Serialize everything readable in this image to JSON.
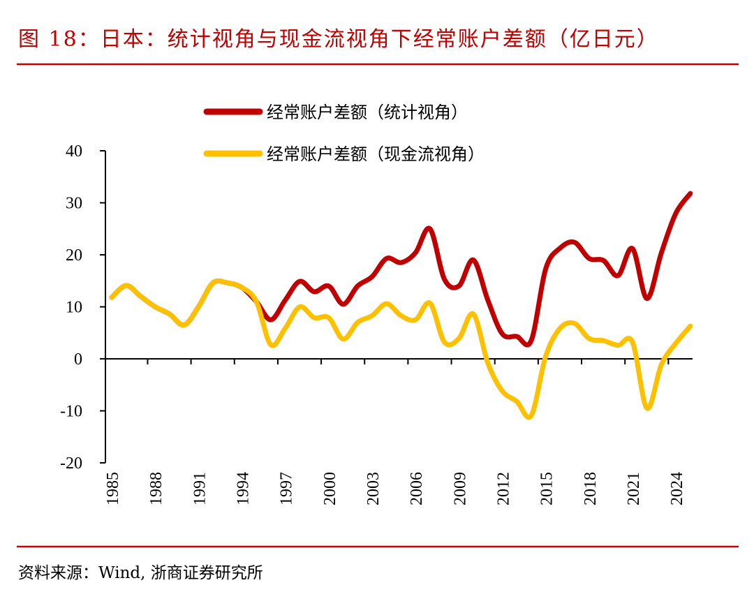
{
  "title": "图 18：日本：统计视角与现金流视角下经常账户差额（亿日元）",
  "source": "资料来源：Wind, 浙商证券研究所",
  "colors": {
    "accent": "#c00000",
    "series1": "#c00000",
    "series2": "#ffc000"
  },
  "chart_data": {
    "type": "line",
    "title": "日本：统计视角与现金流视角下经常账户差额（亿日元）",
    "xlabel": "",
    "ylabel": "",
    "ylim": [
      -20,
      40
    ],
    "yticks": [
      "40",
      "30",
      "20",
      "10",
      "0",
      "-10",
      "-20"
    ],
    "ytick_values": [
      40,
      30,
      20,
      10,
      0,
      -10,
      -20
    ],
    "xticks": [
      "1985",
      "1988",
      "1991",
      "1994",
      "1997",
      "2000",
      "2003",
      "2006",
      "2009",
      "2012",
      "2015",
      "2018",
      "2021",
      "2024"
    ],
    "xtick_values": [
      1985,
      1988,
      1991,
      1994,
      1997,
      2000,
      2003,
      2006,
      2009,
      2012,
      2015,
      2018,
      2021,
      2024
    ],
    "legend_position": "top-center",
    "x": [
      1985,
      1986,
      1987,
      1988,
      1989,
      1990,
      1991,
      1992,
      1993,
      1994,
      1995,
      1996,
      1997,
      1998,
      1999,
      2000,
      2001,
      2002,
      2003,
      2004,
      2005,
      2006,
      2007,
      2008,
      2009,
      2010,
      2011,
      2012,
      2013,
      2014,
      2015,
      2016,
      2017,
      2018,
      2019,
      2020,
      2021,
      2022,
      2023,
      2024,
      2025
    ],
    "series": [
      {
        "name": "经常账户差额（统计视角）",
        "color": "#c00000",
        "values": [
          11.8,
          14.1,
          12,
          10,
          8.6,
          6.5,
          10,
          14.6,
          14.6,
          13.7,
          11,
          7.5,
          11.3,
          14.9,
          12.9,
          14,
          10.5,
          14,
          15.8,
          19.3,
          18.5,
          20.4,
          25,
          15.3,
          14,
          19,
          11.3,
          4.8,
          4.3,
          3.5,
          17.3,
          21.3,
          22.4,
          19.3,
          18.9,
          16,
          21.2,
          11.6,
          20.4,
          28,
          31.8
        ]
      },
      {
        "name": "经常账户差额（现金流视角）",
        "color": "#ffc000",
        "values": [
          11.8,
          14.1,
          12,
          10,
          8.6,
          6.5,
          10,
          14.6,
          14.6,
          13.7,
          11,
          2.7,
          5.9,
          10,
          7.9,
          7.9,
          3.8,
          7,
          8.3,
          10.6,
          8.3,
          7.5,
          10.7,
          3.2,
          3.9,
          8.6,
          -0.8,
          -6.2,
          -8.2,
          -10.9,
          0.5,
          5.9,
          6.8,
          3.9,
          3.5,
          2.6,
          3.2,
          -9.5,
          -1.1,
          3,
          6.3
        ]
      }
    ]
  }
}
